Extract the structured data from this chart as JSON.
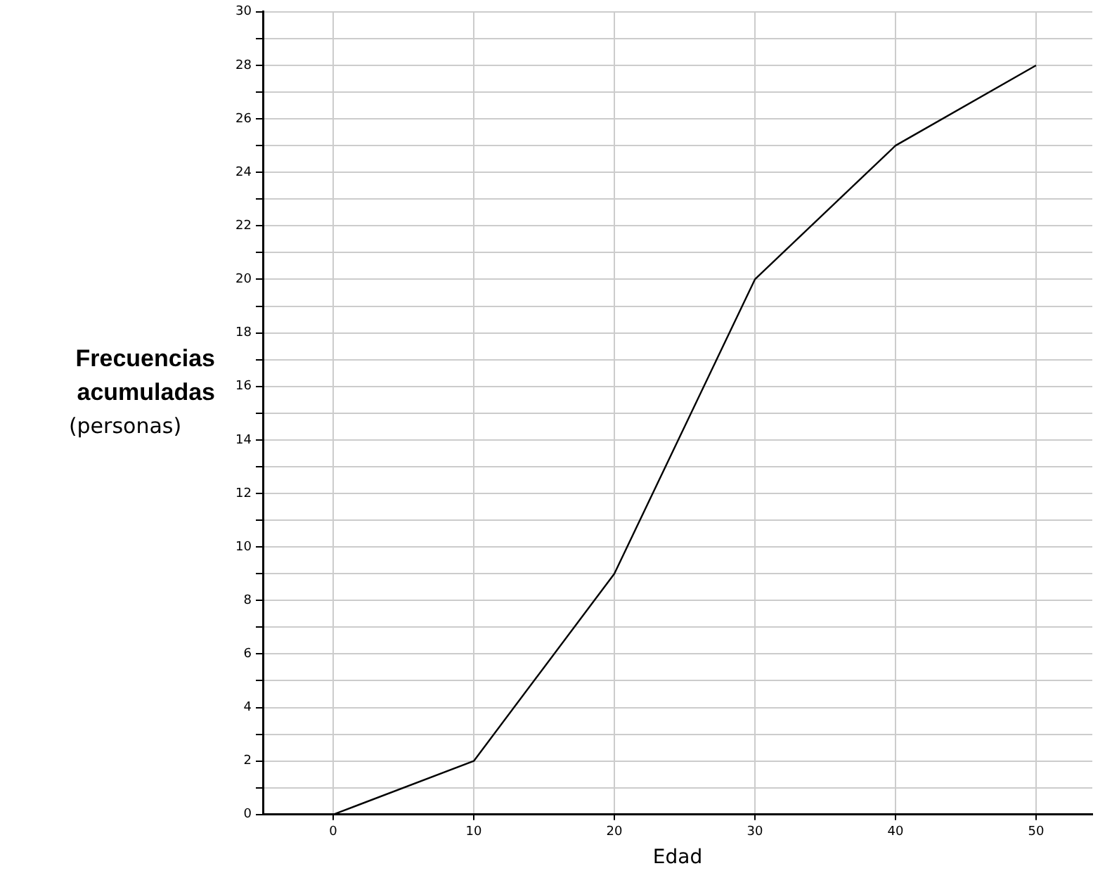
{
  "chart_data": {
    "type": "line",
    "xlabel": "Edad",
    "ylabel": "Frecuencias acumuladas (personas)",
    "x": [
      0,
      10,
      20,
      30,
      40,
      50
    ],
    "series": [
      {
        "color": "#000000",
        "values": [
          0,
          2,
          9,
          20,
          25,
          28
        ]
      }
    ],
    "xlim": [
      -5,
      54
    ],
    "xticks": [
      0,
      10,
      20,
      30,
      40,
      50
    ],
    "ylim": [
      0,
      30
    ],
    "yticks": [
      0,
      {
        "value": 1,
        "label": null
      },
      2,
      {
        "value": 3,
        "label": null
      },
      4,
      {
        "value": 5,
        "label": null
      },
      6,
      {
        "value": 7,
        "label": null
      },
      8,
      {
        "value": 9,
        "label": null
      },
      10,
      {
        "value": 11,
        "label": null
      },
      12,
      {
        "value": 13,
        "label": null
      },
      14,
      {
        "value": 15,
        "label": null
      },
      16,
      {
        "value": 17,
        "label": null
      },
      18,
      {
        "value": 19,
        "label": null
      },
      20,
      {
        "value": 21,
        "label": null
      },
      22,
      {
        "value": 23,
        "label": null
      },
      24,
      {
        "value": 25,
        "label": null
      },
      26,
      {
        "value": 27,
        "label": null
      },
      28,
      {
        "value": 29,
        "label": null
      },
      30
    ],
    "grid": true,
    "legend": false,
    "marker": "none",
    "line_style": "solid"
  }
}
